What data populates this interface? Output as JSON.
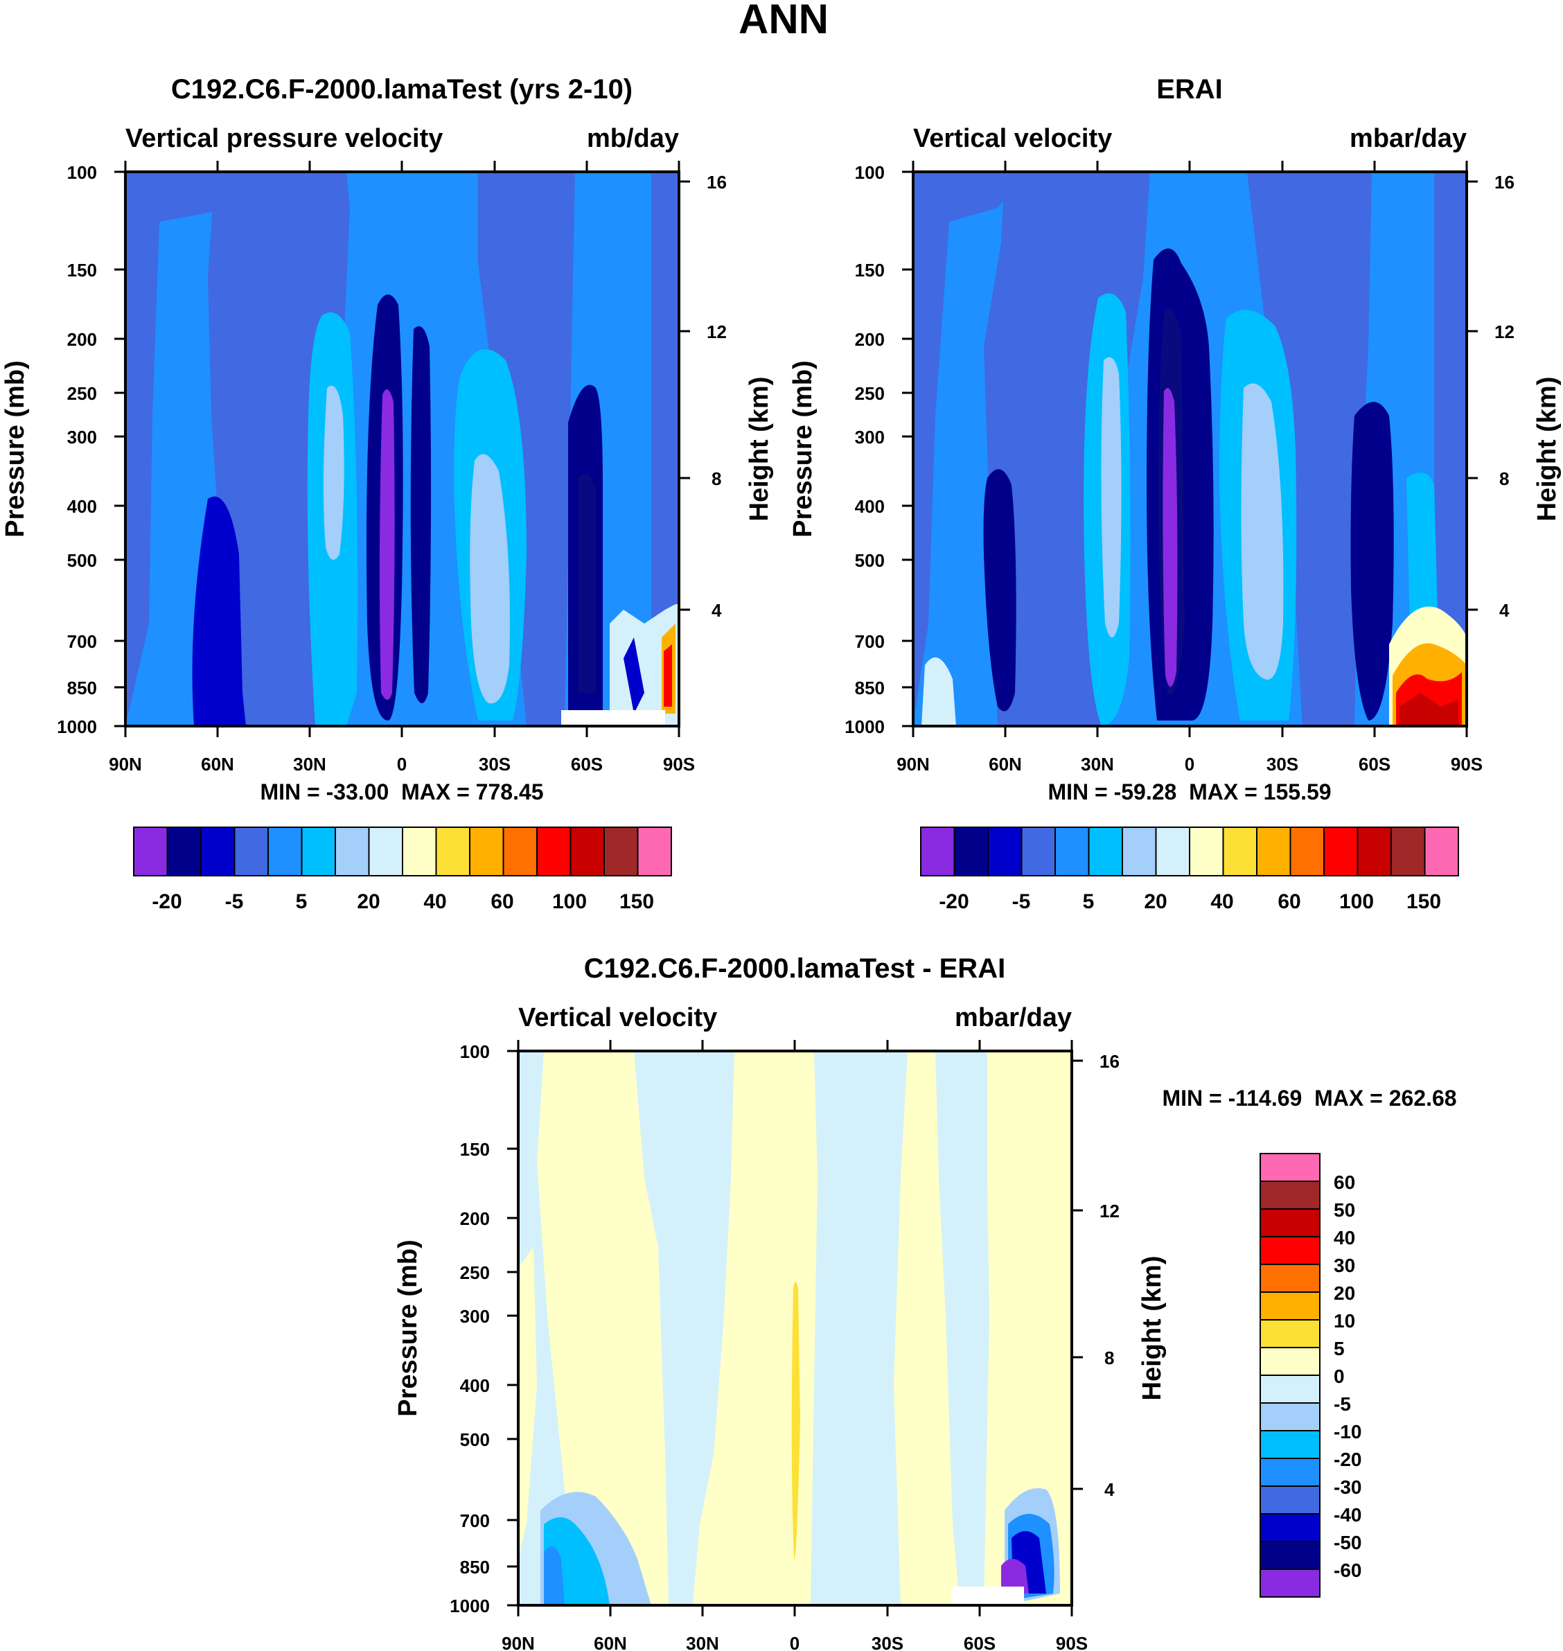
{
  "main_title": "ANN",
  "colors": {
    "full": [
      "#8A2BE2",
      "#00008B",
      "#0000CD",
      "#4169E1",
      "#1E90FF",
      "#00BFFF",
      "#A4CFFA",
      "#D4F1FB",
      "#FFFFC8",
      "#FDE036",
      "#FFB000",
      "#FF7000",
      "#FF0000",
      "#C80000",
      "#A02828",
      "#FF69B4"
    ],
    "diff": [
      "#FF69B4",
      "#A02828",
      "#C80000",
      "#FF0000",
      "#FF7000",
      "#FFB000",
      "#FDE036",
      "#FFFFC8",
      "#D4F1FB",
      "#A4CFFA",
      "#00BFFF",
      "#1E90FF",
      "#4169E1",
      "#0000CD",
      "#00008B",
      "#8A2BE2"
    ]
  },
  "chart_data": [
    {
      "type": "heatmap",
      "title": "C192.C6.F-2000.lamaTest (yrs 2-10)",
      "left_string": "Vertical pressure velocity",
      "right_string": "mb/day",
      "ylabel": "Pressure (mb)",
      "ylabel_right": "Height (km)",
      "x_ticks": [
        "90N",
        "60N",
        "30N",
        "0",
        "30S",
        "60S",
        "90S"
      ],
      "y_ticks": [
        "100",
        "150",
        "200",
        "250",
        "300",
        "400",
        "500",
        "700",
        "850",
        "1000"
      ],
      "y_ticks_right": [
        "16",
        "12",
        "8",
        "4"
      ],
      "stats": "MIN = -33.00  MAX = 778.45",
      "colorbar_labels": [
        "-20",
        "-5",
        "5",
        "20",
        "40",
        "60",
        "100",
        "150"
      ],
      "x": [
        "90N",
        "60N",
        "30N",
        "0",
        "30S",
        "60S",
        "90S"
      ],
      "ylim": [
        1000,
        100
      ],
      "min": -33.0,
      "max": 778.45
    },
    {
      "type": "heatmap",
      "title": "ERAI",
      "left_string": "Vertical velocity",
      "right_string": "mbar/day",
      "ylabel": "Pressure (mb)",
      "ylabel_right": "Height (km)",
      "x_ticks": [
        "90N",
        "60N",
        "30N",
        "0",
        "30S",
        "60S",
        "90S"
      ],
      "y_ticks": [
        "100",
        "150",
        "200",
        "250",
        "300",
        "400",
        "500",
        "700",
        "850",
        "1000"
      ],
      "y_ticks_right": [
        "16",
        "12",
        "8",
        "4"
      ],
      "stats": "MIN = -59.28  MAX = 155.59",
      "colorbar_labels": [
        "-20",
        "-5",
        "5",
        "20",
        "40",
        "60",
        "100",
        "150"
      ],
      "x": [
        "90N",
        "60N",
        "30N",
        "0",
        "30S",
        "60S",
        "90S"
      ],
      "ylim": [
        1000,
        100
      ],
      "min": -59.28,
      "max": 155.59
    },
    {
      "type": "heatmap",
      "title": "C192.C6.F-2000.lamaTest - ERAI",
      "left_string": "Vertical velocity",
      "right_string": "mbar/day",
      "ylabel": "Pressure (mb)",
      "ylabel_right": "Height (km)",
      "x_ticks": [
        "90N",
        "60N",
        "30N",
        "0",
        "30S",
        "60S",
        "90S"
      ],
      "y_ticks": [
        "100",
        "150",
        "200",
        "250",
        "300",
        "400",
        "500",
        "700",
        "850",
        "1000"
      ],
      "y_ticks_right": [
        "16",
        "12",
        "8",
        "4"
      ],
      "stats": "MIN = -114.69  MAX = 262.68",
      "colorbar_labels": [
        "60",
        "50",
        "40",
        "30",
        "20",
        "10",
        "5",
        "0",
        "-5",
        "-10",
        "-20",
        "-30",
        "-40",
        "-50",
        "-60"
      ],
      "x": [
        "90N",
        "60N",
        "30N",
        "0",
        "30S",
        "60S",
        "90S"
      ],
      "ylim": [
        1000,
        100
      ],
      "min": -114.69,
      "max": 262.68
    }
  ]
}
